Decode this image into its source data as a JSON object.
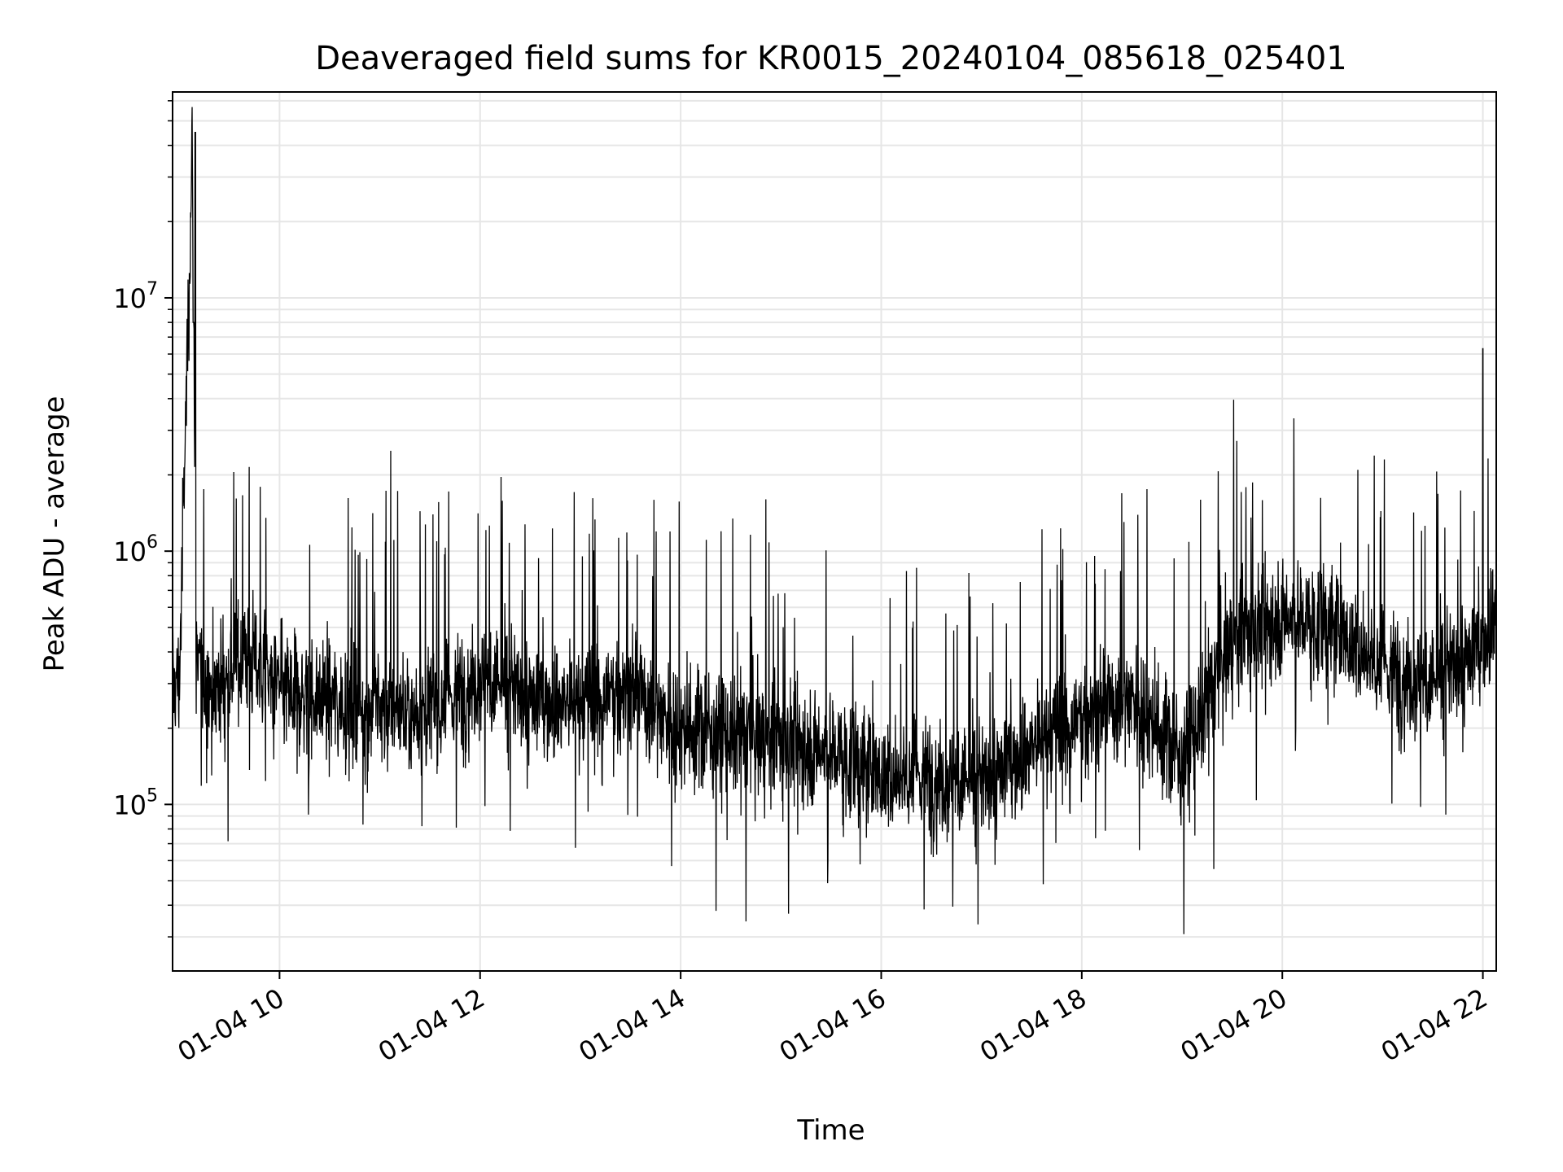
{
  "chart_data": {
    "type": "line",
    "title": "Deaveraged field sums for KR0015_20240104_085618_025401",
    "xlabel": "Time",
    "ylabel": "Peak ADU - average",
    "y_scale": "log",
    "ylim": [
      22000,
      65000000
    ],
    "xlim": [
      "01-04 08:56",
      "01-04 22:08"
    ],
    "x_ticks": [
      "01-04 10",
      "01-04 12",
      "01-04 14",
      "01-04 16",
      "01-04 18",
      "01-04 20",
      "01-04 22"
    ],
    "y_ticks": [
      {
        "base": "10",
        "exp": "5",
        "value": 100000
      },
      {
        "base": "10",
        "exp": "6",
        "value": 1000000
      },
      {
        "base": "10",
        "exp": "7",
        "value": 10000000
      }
    ],
    "grid": true,
    "line_color": "#000000",
    "grid_color": "#e6e6e6",
    "series": [
      {
        "x": [
          "01-04 09:00",
          "01-04 09:08",
          "01-04 09:10",
          "01-04 09:20",
          "01-04 09:40",
          "01-04 10:00",
          "01-04 10:30",
          "01-04 11:00",
          "01-04 11:30",
          "01-04 12:00",
          "01-04 12:30",
          "01-04 13:00",
          "01-04 13:30",
          "01-04 14:00",
          "01-04 14:30",
          "01-04 15:00",
          "01-04 15:30",
          "01-04 16:00",
          "01-04 16:30",
          "01-04 17:00",
          "01-04 17:30",
          "01-04 18:00",
          "01-04 18:30",
          "01-04 19:00",
          "01-04 19:30",
          "01-04 20:00",
          "01-04 20:30",
          "01-04 21:00",
          "01-04 21:30",
          "01-04 22:00",
          "01-04 22:08"
        ],
        "y": [
          300000,
          45000000,
          350000,
          280000,
          400000,
          280000,
          260000,
          240000,
          230000,
          320000,
          260000,
          250000,
          290000,
          200000,
          190000,
          180000,
          160000,
          130000,
          130000,
          120000,
          170000,
          220000,
          270000,
          150000,
          450000,
          550000,
          500000,
          350000,
          300000,
          420000,
          600000
        ]
      }
    ]
  }
}
